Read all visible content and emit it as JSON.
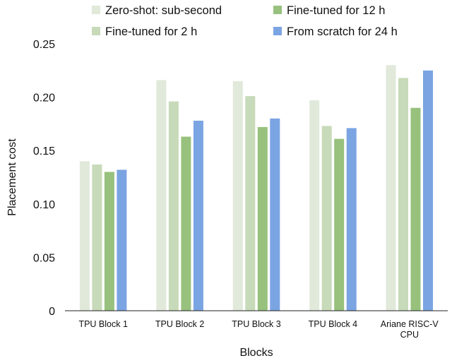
{
  "chart_data": {
    "type": "bar",
    "title": "",
    "xlabel": "Blocks",
    "ylabel": "Placement cost",
    "ylim": [
      0,
      0.25
    ],
    "yticks": [
      0,
      0.05,
      0.1,
      0.15,
      0.2,
      0.25
    ],
    "ytick_labels": [
      "0",
      "0.05",
      "0.10",
      "0.15",
      "0.20",
      "0.25"
    ],
    "grid": false,
    "legend_position": "top",
    "categories": [
      [
        "TPU Block 1"
      ],
      [
        "TPU Block 2"
      ],
      [
        "TPU Block 3"
      ],
      [
        "TPU Block 4"
      ],
      [
        "Ariane RISC-V",
        "CPU"
      ]
    ],
    "series": [
      {
        "name": "Zero-shot: sub-second",
        "color": "#e1e9da",
        "values": [
          0.14,
          0.216,
          0.215,
          0.197,
          0.23
        ]
      },
      {
        "name": "Fine-tuned for 2 h",
        "color": "#c7dab9",
        "values": [
          0.137,
          0.196,
          0.201,
          0.173,
          0.218
        ]
      },
      {
        "name": "Fine-tuned for 12 h",
        "color": "#97c17d",
        "values": [
          0.13,
          0.163,
          0.172,
          0.161,
          0.19
        ]
      },
      {
        "name": "From scratch for 24 h",
        "color": "#7ba4e2",
        "values": [
          0.132,
          0.178,
          0.18,
          0.171,
          0.225
        ]
      }
    ]
  }
}
